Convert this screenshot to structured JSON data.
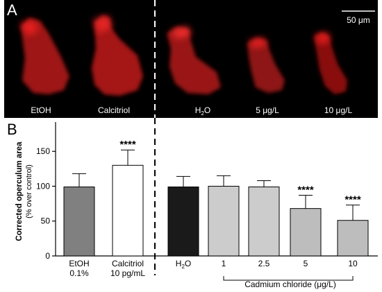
{
  "panel_a": {
    "label": "A",
    "scale_bar": "50 μm",
    "images": [
      {
        "caption": "EtOH"
      },
      {
        "caption": "Calcitriol"
      },
      {
        "caption_main": "H",
        "caption_sub": "2",
        "caption_tail": "O"
      },
      {
        "caption": "5 μg/L"
      },
      {
        "caption": "10 μg/L"
      }
    ],
    "stain_color": "#d11b1b",
    "background_color": "#000000"
  },
  "panel_b": {
    "label": "B",
    "cadmium_label": "Cadmium chloride (μg/L)"
  },
  "chart_data": {
    "type": "bar",
    "ylabel": "Corrected operculum area",
    "ylabel_sub": "(% over control)",
    "ylim": [
      0,
      150
    ],
    "yticks": [
      0,
      50,
      100,
      150
    ],
    "categories": [
      {
        "line1": "EtOH",
        "line2": "0.1%"
      },
      {
        "line1": "Calcitriol",
        "line2": "10 pg/mL"
      },
      {
        "line1_main": "H",
        "line1_sub": "2",
        "line1_tail": "O",
        "line2": ""
      },
      {
        "line1": "1",
        "line2": ""
      },
      {
        "line1": "2.5",
        "line2": ""
      },
      {
        "line1": "5",
        "line2": ""
      },
      {
        "line1": "10",
        "line2": ""
      }
    ],
    "values": [
      99,
      130,
      99,
      100,
      99,
      68,
      51
    ],
    "errors": [
      19,
      22,
      15,
      15,
      9,
      19,
      22
    ],
    "significance": [
      "",
      "****",
      "",
      "",
      "",
      "****",
      "****"
    ],
    "colors": [
      "#808080",
      "#ffffff",
      "#1a1a1a",
      "#cccccc",
      "#cccccc",
      "#bdbdbd",
      "#bdbdbd"
    ]
  }
}
